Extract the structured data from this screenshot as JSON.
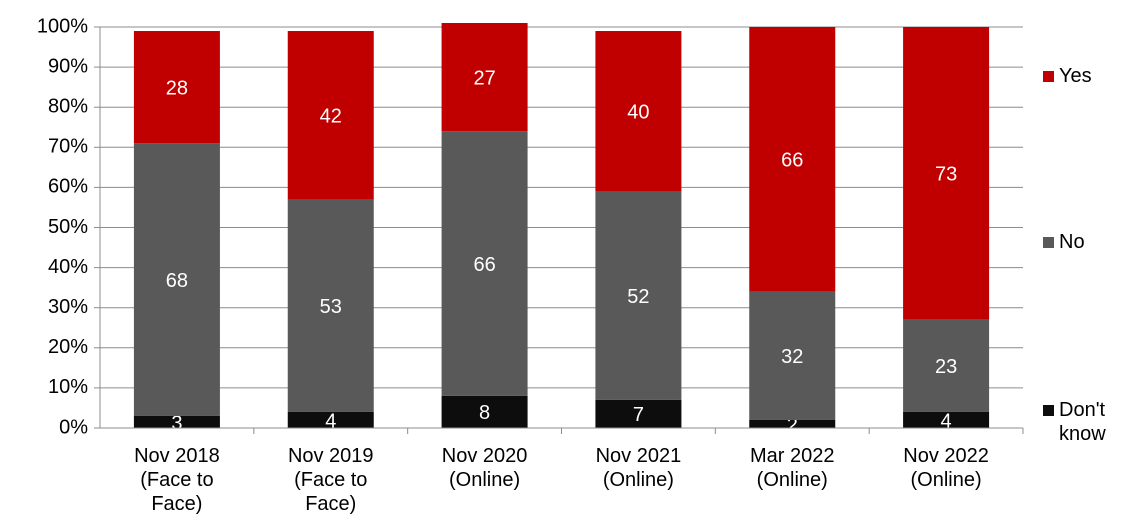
{
  "chart_data": {
    "type": "bar",
    "stacked": true,
    "categories": [
      "Nov 2018\n(Face to\nFace)",
      "Nov 2019\n(Face to\nFace)",
      "Nov 2020\n(Online)",
      "Nov 2021\n(Online)",
      "Mar 2022\n(Online)",
      "Nov 2022\n(Online)"
    ],
    "series": [
      {
        "name": "Don't know",
        "color": "#0d0d0d",
        "values": [
          3,
          4,
          8,
          7,
          2,
          4
        ]
      },
      {
        "name": "No",
        "color": "#595959",
        "values": [
          68,
          53,
          66,
          52,
          32,
          23
        ]
      },
      {
        "name": "Yes",
        "color": "#c00000",
        "values": [
          28,
          42,
          27,
          40,
          66,
          73
        ]
      }
    ],
    "ylim": [
      0,
      100
    ],
    "yticks": [
      {
        "value": 0,
        "label": "0%"
      },
      {
        "value": 10,
        "label": "10%"
      },
      {
        "value": 20,
        "label": "20%"
      },
      {
        "value": 30,
        "label": "30%"
      },
      {
        "value": 40,
        "label": "40%"
      },
      {
        "value": 50,
        "label": "50%"
      },
      {
        "value": 60,
        "label": "60%"
      },
      {
        "value": 70,
        "label": "70%"
      },
      {
        "value": 80,
        "label": "80%"
      },
      {
        "value": 90,
        "label": "90%"
      },
      {
        "value": 100,
        "label": "100%"
      }
    ],
    "grid": true,
    "legend": "right"
  }
}
